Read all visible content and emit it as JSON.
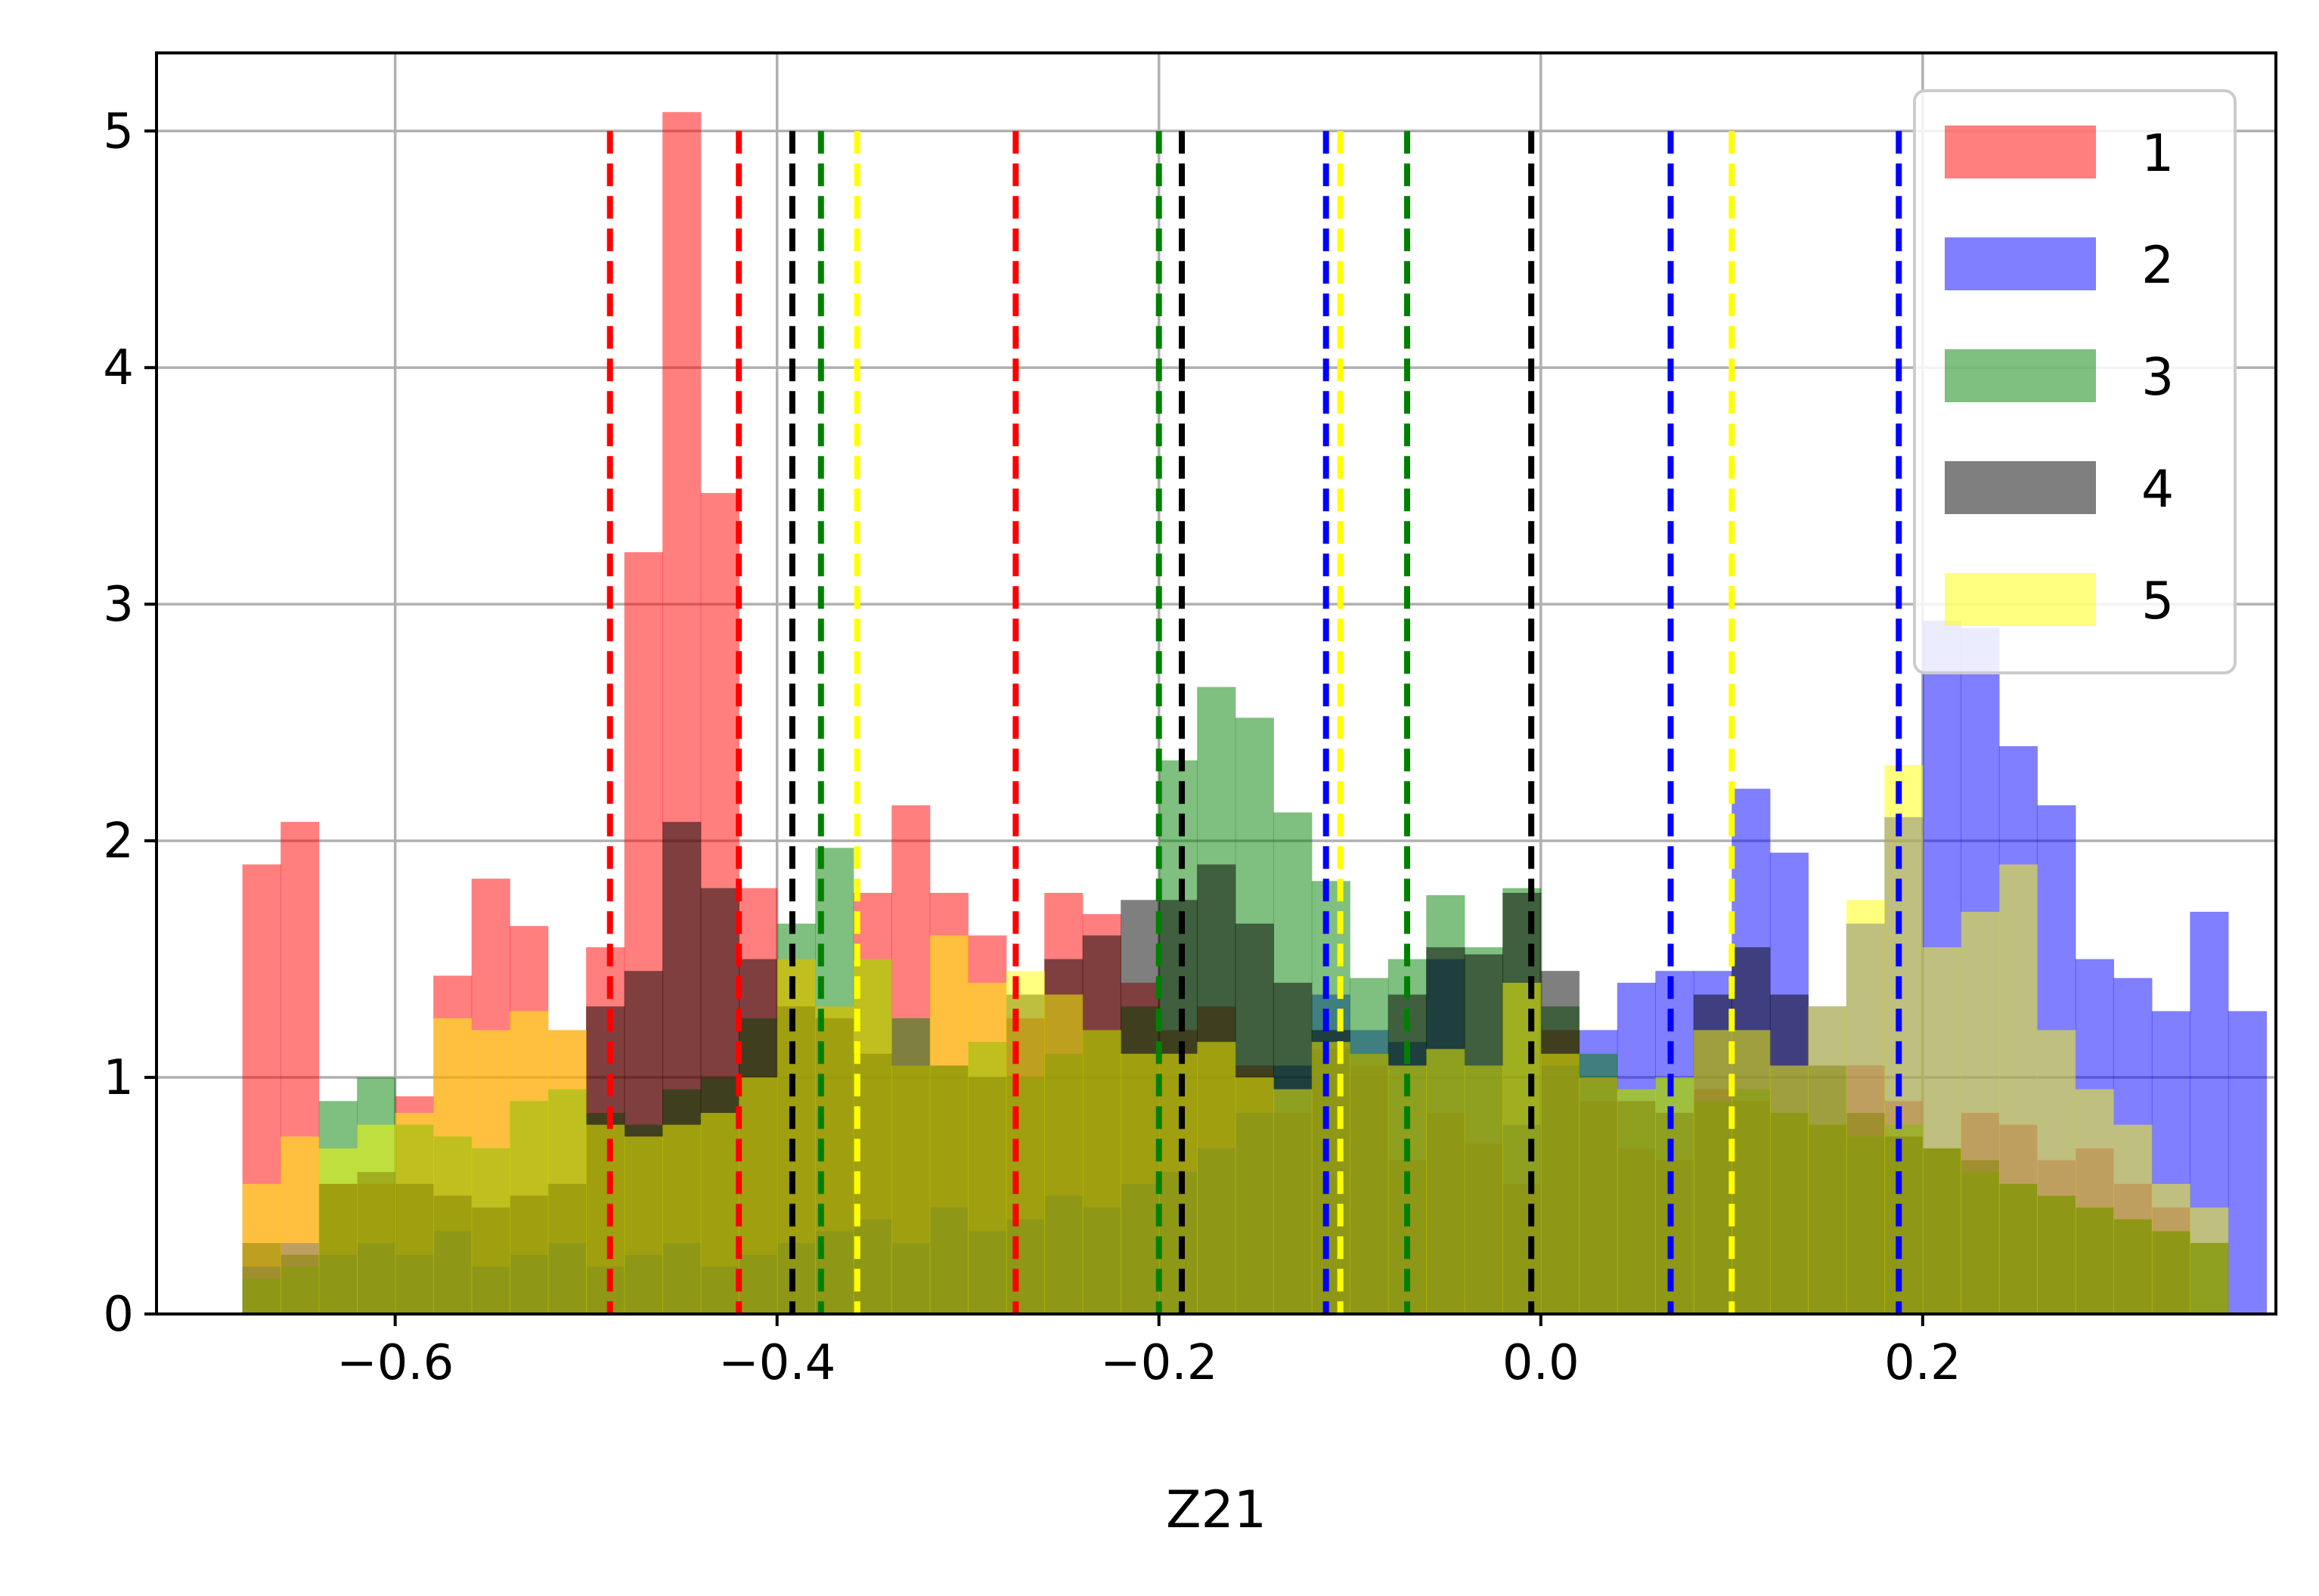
{
  "chart_data": {
    "type": "bar",
    "title": "",
    "xlabel": "Z21",
    "ylabel": "",
    "xlim": [
      -0.725,
      0.385
    ],
    "ylim": [
      0,
      5.33
    ],
    "grid": true,
    "legend_position": "top-right",
    "x_ticks": [
      -0.6,
      -0.4,
      -0.2,
      0.0,
      0.2
    ],
    "x_tick_labels": [
      "−0.6",
      "−0.4",
      "−0.2",
      "0.0",
      "0.2"
    ],
    "y_ticks": [
      0,
      1,
      2,
      3,
      4,
      5
    ],
    "y_tick_labels": [
      "0",
      "1",
      "2",
      "3",
      "4",
      "5"
    ],
    "bin_start": -0.68,
    "bin_width": 0.02,
    "series": [
      {
        "name": "1",
        "color": "#ff0000",
        "alpha": 0.5,
        "values": [
          1.9,
          2.08,
          0.55,
          0.55,
          0.92,
          1.43,
          1.84,
          1.64,
          1.2,
          1.55,
          3.22,
          5.08,
          3.47,
          1.8,
          1.5,
          1.3,
          1.78,
          2.15,
          1.78,
          1.6,
          1.25,
          1.78,
          1.69,
          1.4,
          1.2,
          1.3,
          1.05,
          0.85,
          1.12,
          1.05,
          0.65,
          0.85,
          0.72,
          0.55,
          1.2,
          0.9,
          0.7,
          0.65,
          0.95,
          0.9,
          0.85,
          0.8,
          1.05,
          0.9,
          0.7,
          0.85,
          0.8,
          0.65,
          0.7,
          0.55,
          0.45
        ]
      },
      {
        "name": "2",
        "color": "#0000ff",
        "alpha": 0.5,
        "values": [
          0.2,
          0.3,
          0.25,
          0.3,
          0.25,
          0.35,
          0.2,
          0.25,
          0.3,
          0.2,
          0.25,
          0.3,
          0.2,
          0.25,
          0.3,
          0.35,
          0.4,
          0.3,
          0.45,
          0.35,
          0.4,
          0.5,
          0.45,
          0.55,
          0.6,
          0.7,
          0.85,
          1.05,
          1.35,
          1.2,
          1.15,
          1.5,
          1.05,
          0.8,
          1.05,
          1.2,
          1.4,
          1.45,
          1.45,
          2.22,
          1.95,
          1.3,
          1.65,
          2.1,
          2.93,
          2.9,
          2.4,
          2.15,
          1.5,
          1.42,
          1.28,
          1.7,
          1.28
        ]
      },
      {
        "name": "3",
        "color": "#008000",
        "alpha": 0.5,
        "values": [
          0.15,
          0.2,
          0.9,
          1.0,
          0.8,
          0.75,
          0.7,
          0.9,
          0.95,
          0.85,
          0.8,
          0.95,
          1.0,
          1.25,
          1.65,
          1.97,
          1.5,
          1.25,
          1.05,
          1.15,
          1.0,
          1.1,
          1.2,
          1.3,
          2.34,
          2.65,
          2.52,
          2.12,
          1.83,
          1.42,
          1.5,
          1.77,
          1.55,
          1.8,
          1.3,
          1.1,
          0.95,
          1.0,
          0.9,
          0.95,
          0.85,
          0.8,
          0.75,
          0.8,
          0.7,
          0.6,
          0.55,
          0.5,
          0.45,
          0.4,
          0.35,
          0.3
        ]
      },
      {
        "name": "4",
        "color": "#000000",
        "alpha": 0.5,
        "values": [
          0.3,
          0.25,
          0.55,
          0.6,
          0.55,
          0.5,
          0.45,
          0.5,
          0.55,
          1.3,
          1.45,
          2.08,
          1.8,
          1.5,
          1.3,
          1.25,
          1.1,
          1.05,
          1.05,
          1.0,
          1.35,
          1.5,
          1.6,
          1.75,
          1.75,
          1.9,
          1.65,
          1.4,
          1.2,
          1.1,
          1.35,
          1.55,
          1.52,
          1.78,
          1.45,
          1.0,
          0.9,
          0.85,
          1.35,
          1.55,
          1.35,
          1.05,
          0.85,
          0.75,
          0.7,
          0.65,
          0.55,
          0.5,
          0.45,
          0.4,
          0.35,
          0.3
        ]
      },
      {
        "name": "5",
        "color": "#ffff00",
        "alpha": 0.5,
        "values": [
          0.55,
          0.75,
          0.7,
          0.8,
          0.85,
          1.25,
          1.2,
          1.28,
          1.2,
          0.8,
          0.75,
          0.8,
          0.85,
          1.0,
          1.5,
          1.3,
          1.5,
          1.05,
          1.6,
          1.4,
          1.45,
          1.35,
          1.2,
          1.1,
          1.1,
          1.15,
          1.0,
          0.95,
          1.15,
          1.1,
          1.05,
          1.12,
          1.05,
          1.4,
          1.1,
          1.0,
          0.95,
          1.0,
          1.2,
          1.2,
          1.05,
          1.3,
          1.75,
          2.32,
          1.55,
          1.7,
          1.9,
          1.2,
          0.95,
          0.8,
          0.55,
          0.45
        ]
      }
    ],
    "vlines": [
      {
        "series": "1",
        "color": "#ff0000",
        "x": [
          -0.4875,
          -0.42,
          -0.275
        ]
      },
      {
        "series": "2",
        "color": "#0000ff",
        "x": [
          -0.1125,
          0.068,
          0.1875
        ]
      },
      {
        "series": "3",
        "color": "#008000",
        "x": [
          -0.377,
          -0.2,
          -0.07
        ]
      },
      {
        "series": "4",
        "color": "#000000",
        "x": [
          -0.392,
          -0.188,
          -0.005
        ]
      },
      {
        "series": "5",
        "color": "#ffff00",
        "x": [
          -0.358,
          -0.105,
          0.1
        ]
      }
    ]
  }
}
